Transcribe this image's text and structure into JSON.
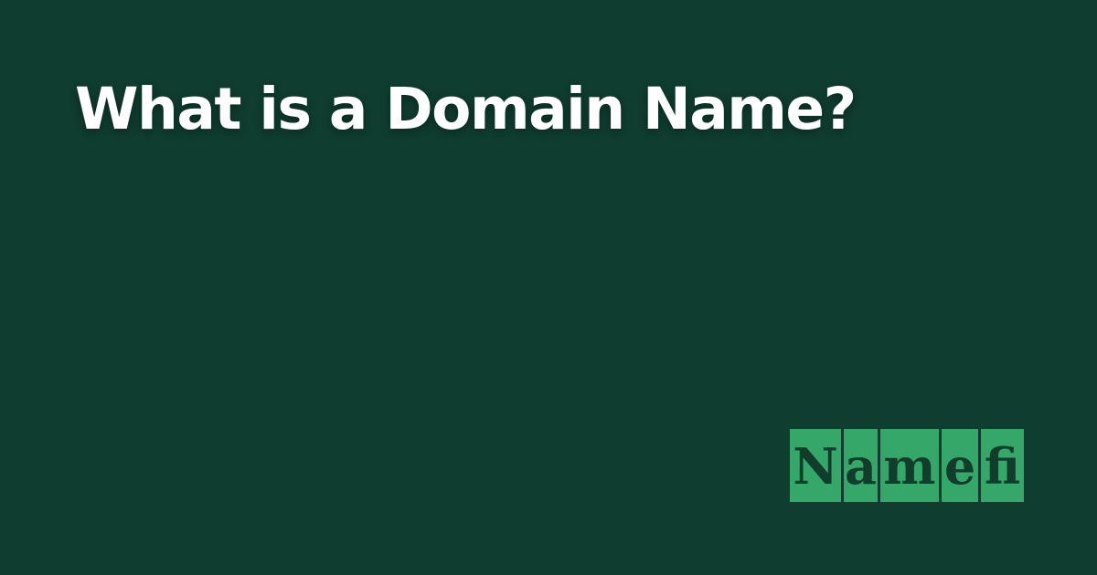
{
  "colors": {
    "background": "#0f3d2f",
    "headline_text": "#ffffff",
    "logo_tile": "#35a869",
    "logo_text": "#123d2c"
  },
  "headline": "What is a Domain Name?",
  "logo": {
    "text": "Namefi",
    "letters": [
      "N",
      "a",
      "m",
      "e",
      "fi"
    ]
  }
}
